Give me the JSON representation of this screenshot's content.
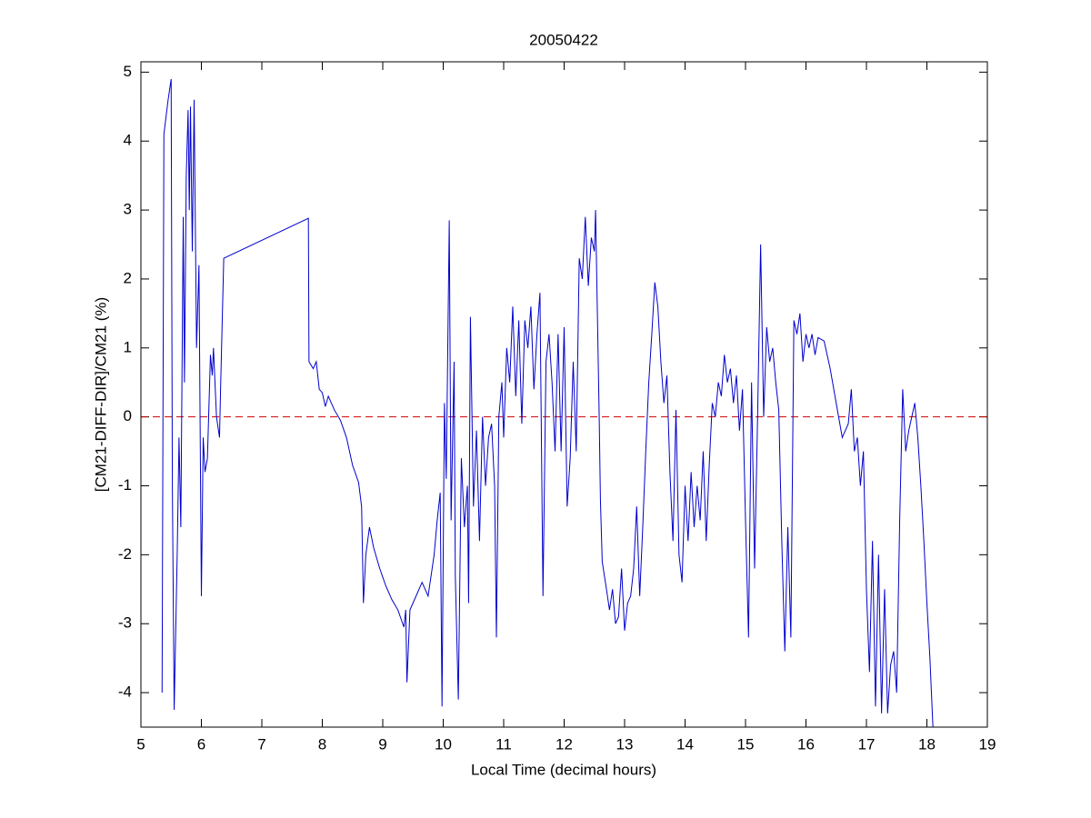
{
  "chart_data": {
    "type": "line",
    "title": "20050422",
    "xlabel": "Local Time (decimal hours)",
    "ylabel": "[CM21-DIFF-DIR]/CM21 (%)",
    "xlim": [
      5,
      19
    ],
    "xticks": [
      5,
      6,
      7,
      8,
      9,
      10,
      11,
      12,
      13,
      14,
      15,
      16,
      17,
      18,
      19
    ],
    "ylim": [
      -4.5,
      5.15
    ],
    "yticks": [
      -4,
      -3,
      -2,
      -1,
      0,
      1,
      2,
      3,
      4,
      5
    ],
    "reference_line": {
      "value": 0,
      "color": "#cc0000"
    },
    "series": [
      {
        "color": "#0000cc",
        "x": [
          5.35,
          5.38,
          5.45,
          5.5,
          5.52,
          5.55,
          5.6,
          5.63,
          5.66,
          5.7,
          5.72,
          5.75,
          5.78,
          5.8,
          5.82,
          5.85,
          5.88,
          5.92,
          5.96,
          6.0,
          6.03,
          6.06,
          6.1,
          6.15,
          6.18,
          6.2,
          6.25,
          6.3,
          6.32,
          6.37,
          7.77,
          7.78,
          7.85,
          7.9,
          7.95,
          8.0,
          8.05,
          8.1,
          8.2,
          8.3,
          8.4,
          8.5,
          8.6,
          8.65,
          8.68,
          8.72,
          8.78,
          8.85,
          8.95,
          9.05,
          9.15,
          9.25,
          9.35,
          9.38,
          9.4,
          9.45,
          9.55,
          9.65,
          9.75,
          9.85,
          9.9,
          9.95,
          9.98,
          10.02,
          10.05,
          10.1,
          10.13,
          10.18,
          10.2,
          10.25,
          10.3,
          10.35,
          10.4,
          10.42,
          10.45,
          10.5,
          10.55,
          10.6,
          10.65,
          10.7,
          10.75,
          10.8,
          10.85,
          10.88,
          10.92,
          10.97,
          11.0,
          11.05,
          11.1,
          11.15,
          11.2,
          11.25,
          11.3,
          11.35,
          11.4,
          11.45,
          11.5,
          11.55,
          11.6,
          11.65,
          11.7,
          11.75,
          11.8,
          11.85,
          11.9,
          11.95,
          12.0,
          12.05,
          12.1,
          12.15,
          12.2,
          12.25,
          12.3,
          12.35,
          12.4,
          12.45,
          12.5,
          12.52,
          12.58,
          12.6,
          12.63,
          12.7,
          12.75,
          12.8,
          12.85,
          12.9,
          12.95,
          13.0,
          13.05,
          13.1,
          13.15,
          13.2,
          13.25,
          13.3,
          13.35,
          13.4,
          13.45,
          13.5,
          13.55,
          13.6,
          13.65,
          13.7,
          13.75,
          13.8,
          13.85,
          13.9,
          13.95,
          14.0,
          14.05,
          14.1,
          14.15,
          14.2,
          14.25,
          14.3,
          14.35,
          14.4,
          14.45,
          14.5,
          14.55,
          14.6,
          14.65,
          14.7,
          14.75,
          14.8,
          14.85,
          14.9,
          14.95,
          15.0,
          15.05,
          15.1,
          15.15,
          15.2,
          15.25,
          15.3,
          15.35,
          15.4,
          15.45,
          15.5,
          15.55,
          15.6,
          15.65,
          15.7,
          15.75,
          15.8,
          15.85,
          15.9,
          15.95,
          16.0,
          16.05,
          16.1,
          16.15,
          16.2,
          16.3,
          16.4,
          16.5,
          16.6,
          16.7,
          16.75,
          16.8,
          16.85,
          16.9,
          16.95,
          17.0,
          17.05,
          17.1,
          17.15,
          17.2,
          17.25,
          17.3,
          17.35,
          17.4,
          17.45,
          17.5,
          17.55,
          17.6,
          17.65,
          17.7,
          17.75,
          17.8,
          17.85,
          17.9,
          17.95,
          18.0,
          18.05,
          18.1
        ],
        "values": [
          -4.0,
          4.1,
          4.6,
          4.9,
          -1.0,
          -4.25,
          -2.0,
          -0.3,
          -1.6,
          2.9,
          0.5,
          3.5,
          4.45,
          3.0,
          4.5,
          2.4,
          4.6,
          1.0,
          2.2,
          -2.6,
          -0.3,
          -0.8,
          -0.6,
          0.9,
          0.6,
          1.0,
          0.0,
          -0.3,
          0.5,
          2.3,
          2.88,
          0.8,
          0.7,
          0.8,
          0.4,
          0.35,
          0.15,
          0.3,
          0.1,
          -0.05,
          -0.3,
          -0.7,
          -0.95,
          -1.3,
          -2.7,
          -2.0,
          -1.6,
          -1.9,
          -2.2,
          -2.45,
          -2.65,
          -2.8,
          -3.05,
          -2.8,
          -3.85,
          -2.8,
          -2.6,
          -2.4,
          -2.6,
          -2.0,
          -1.5,
          -1.1,
          -4.2,
          0.2,
          -0.9,
          2.85,
          -1.5,
          0.8,
          -2.3,
          -4.1,
          -0.6,
          -1.6,
          -1.0,
          -2.7,
          1.45,
          -1.3,
          -0.2,
          -1.8,
          0.0,
          -1.0,
          -0.3,
          -0.1,
          -1.0,
          -3.2,
          0.0,
          0.5,
          -0.3,
          1.0,
          0.5,
          1.6,
          0.3,
          1.4,
          -0.1,
          1.4,
          1.0,
          1.6,
          0.4,
          1.2,
          1.8,
          -2.6,
          0.8,
          1.2,
          0.5,
          -0.5,
          1.2,
          -0.5,
          1.3,
          -1.3,
          -0.6,
          0.8,
          -0.5,
          2.3,
          2.0,
          2.9,
          1.9,
          2.6,
          2.4,
          3.0,
          0.0,
          -1.2,
          -2.1,
          -2.5,
          -2.8,
          -2.5,
          -3.0,
          -2.9,
          -2.2,
          -3.1,
          -2.7,
          -2.6,
          -2.2,
          -1.3,
          -2.6,
          -1.6,
          -0.5,
          0.5,
          1.2,
          1.95,
          1.6,
          0.8,
          0.2,
          0.6,
          -0.8,
          -1.8,
          0.1,
          -2.0,
          -2.4,
          -1.0,
          -1.8,
          -0.8,
          -1.6,
          -1.0,
          -1.5,
          -0.5,
          -1.8,
          -0.7,
          0.2,
          0.0,
          0.5,
          0.3,
          0.9,
          0.5,
          0.7,
          0.2,
          0.6,
          -0.2,
          0.4,
          -1.5,
          -3.2,
          0.5,
          -2.2,
          0.0,
          2.5,
          0.0,
          1.3,
          0.8,
          1.0,
          0.5,
          0.1,
          -1.8,
          -3.4,
          -1.6,
          -3.2,
          1.4,
          1.2,
          1.5,
          0.8,
          1.2,
          1.0,
          1.2,
          0.9,
          1.15,
          1.1,
          0.7,
          0.2,
          -0.3,
          -0.1,
          0.4,
          -0.5,
          -0.3,
          -1.0,
          -0.5,
          -2.5,
          -3.7,
          -1.8,
          -4.2,
          -2.0,
          -4.3,
          -2.5,
          -4.3,
          -3.6,
          -3.4,
          -4.0,
          -1.5,
          0.4,
          -0.5,
          -0.2,
          0.0,
          0.2,
          -0.3,
          -1.0,
          -1.8,
          -2.7,
          -3.5,
          -4.5
        ]
      }
    ]
  }
}
